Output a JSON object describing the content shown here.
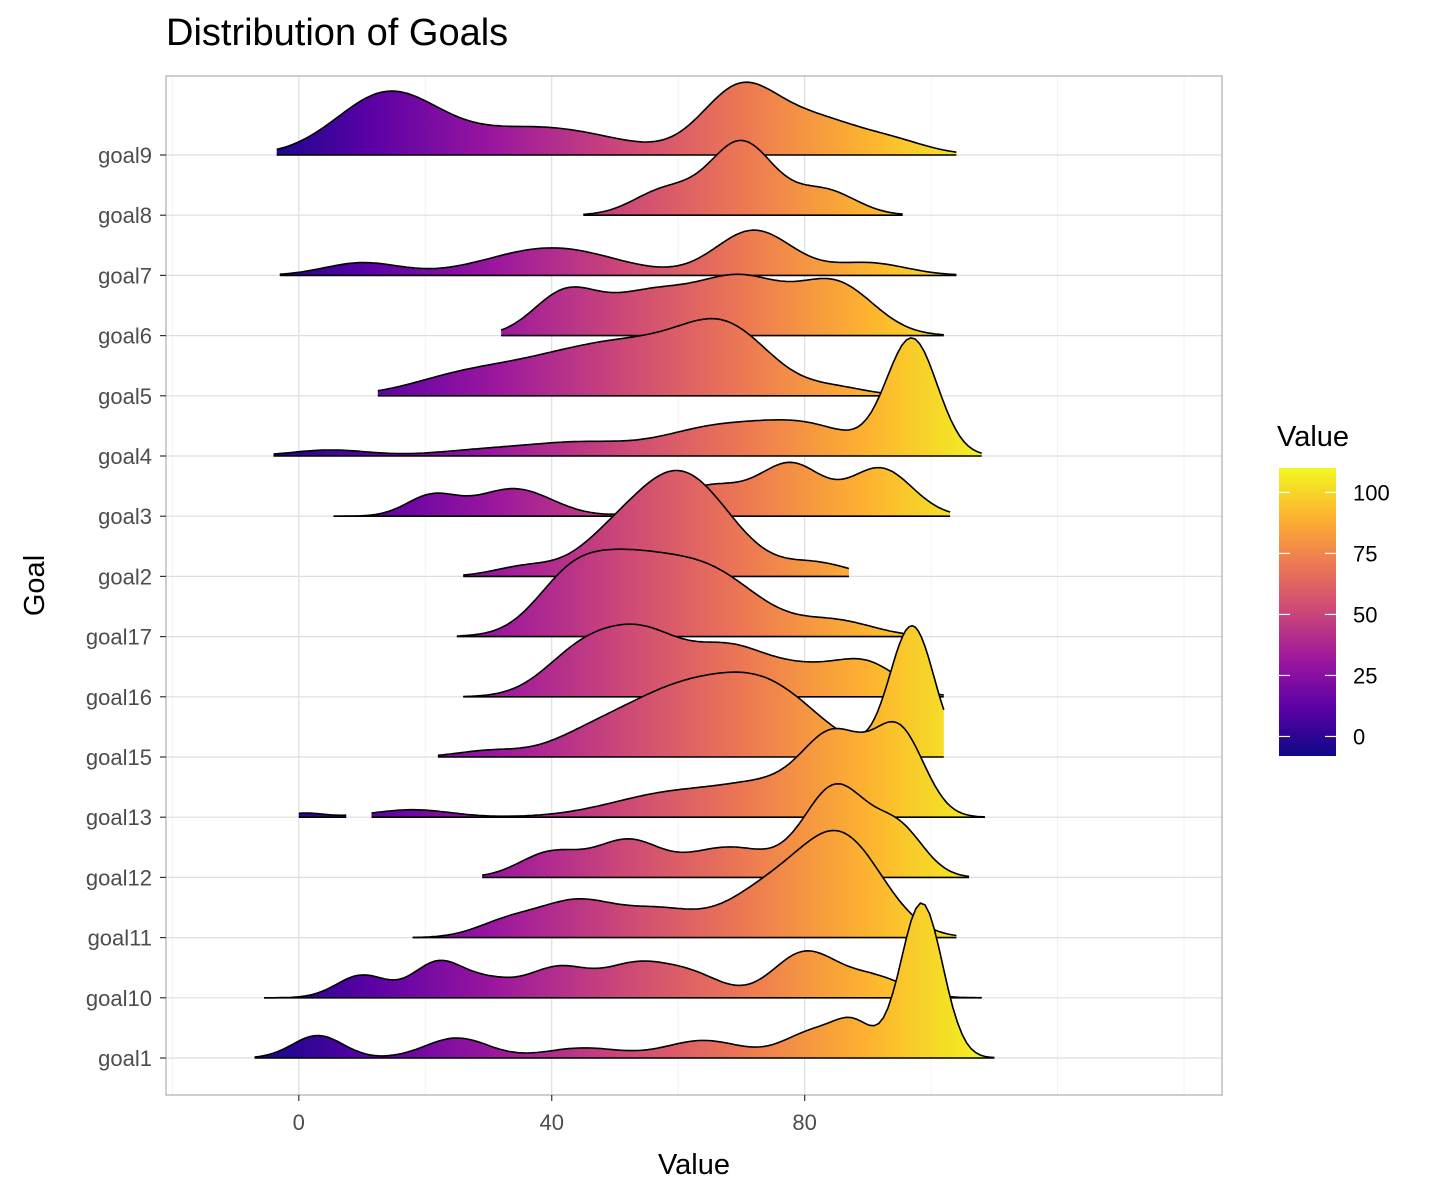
{
  "chart_data": {
    "type": "ridgeline",
    "title": "Distribution of Goals",
    "xlabel": "Value",
    "ylabel": "Goal",
    "xlim": [
      -21,
      146
    ],
    "x_ticks": [
      0,
      40,
      80
    ],
    "grid": true,
    "legend": {
      "title": "Value",
      "position": "right",
      "range": [
        -8,
        110
      ],
      "ticks": [
        0,
        25,
        50,
        75,
        100
      ],
      "colors": [
        "#0d0887",
        "#5c01a6",
        "#9c179e",
        "#cc4778",
        "#ed7953",
        "#fdb42f",
        "#f0f921"
      ]
    },
    "categories": [
      "goal1",
      "goal10",
      "goal11",
      "goal12",
      "goal13",
      "goal15",
      "goal16",
      "goal17",
      "goal2",
      "goal3",
      "goal4",
      "goal5",
      "goal6",
      "goal7",
      "goal8",
      "goal9"
    ],
    "series": [
      {
        "category": "goal1",
        "range": [
          -7,
          110
        ],
        "peaks": [
          [
            3,
            0.45,
            4
          ],
          [
            25,
            0.4,
            5
          ],
          [
            45,
            0.2,
            6
          ],
          [
            64,
            0.35,
            6
          ],
          [
            82,
            0.55,
            5
          ],
          [
            88,
            0.5,
            3
          ],
          [
            98.5,
            3.1,
            3.3
          ]
        ]
      },
      {
        "category": "goal10",
        "range": [
          -5.5,
          108
        ],
        "peaks": [
          [
            10,
            0.45,
            4
          ],
          [
            22,
            0.7,
            4
          ],
          [
            30,
            0.3,
            4
          ],
          [
            41,
            0.6,
            5
          ],
          [
            53,
            0.6,
            5
          ],
          [
            62,
            0.45,
            5
          ],
          [
            80,
            0.9,
            5
          ],
          [
            91,
            0.4,
            5
          ]
        ]
      },
      {
        "category": "goal11",
        "range": [
          18,
          104
        ],
        "peaks": [
          [
            33,
            0.3,
            5
          ],
          [
            44,
            0.7,
            6
          ],
          [
            57,
            0.5,
            6
          ],
          [
            74,
            0.9,
            7
          ],
          [
            86,
            1.9,
            6.5
          ]
        ]
      },
      {
        "category": "goal12",
        "range": [
          29,
          106
        ],
        "peaks": [
          [
            40,
            0.5,
            5
          ],
          [
            52,
            0.7,
            5
          ],
          [
            68,
            0.6,
            7
          ],
          [
            85,
            1.8,
            5
          ],
          [
            95,
            0.9,
            4
          ]
        ]
      },
      {
        "category": "goal13",
        "range": [
          0,
          108.5
        ],
        "gap": [
          7.5,
          11.5
        ],
        "peaks": [
          [
            1,
            0.08,
            3
          ],
          [
            18,
            0.15,
            6
          ],
          [
            60,
            0.5,
            10
          ],
          [
            75,
            0.5,
            7
          ],
          [
            85,
            1.5,
            5
          ],
          [
            95,
            1.65,
            4
          ]
        ]
      },
      {
        "category": "goal15",
        "range": [
          22,
          102
        ],
        "peaks": [
          [
            30,
            0.12,
            5
          ],
          [
            45,
            0.2,
            6
          ],
          [
            60,
            1.3,
            10
          ],
          [
            75,
            1.1,
            8
          ],
          [
            97,
            2.6,
            3.5
          ]
        ]
      },
      {
        "category": "goal16",
        "range": [
          26,
          102
        ],
        "peaks": [
          [
            45,
            0.9,
            6
          ],
          [
            55,
            1.1,
            6
          ],
          [
            68,
            0.9,
            6
          ],
          [
            80,
            0.5,
            6
          ],
          [
            90,
            0.6,
            5
          ]
        ]
      },
      {
        "category": "goal17",
        "range": [
          25,
          96
        ],
        "peaks": [
          [
            42,
            0.5,
            5
          ],
          [
            50,
            1.4,
            8
          ],
          [
            65,
            1.2,
            8
          ],
          [
            85,
            0.3,
            6
          ]
        ]
      },
      {
        "category": "goal2",
        "range": [
          26,
          87
        ],
        "peaks": [
          [
            36,
            0.2,
            5
          ],
          [
            48,
            0.3,
            5
          ],
          [
            60,
            2.1,
            8
          ],
          [
            82,
            0.25,
            5
          ]
        ]
      },
      {
        "category": "goal3",
        "range": [
          5.5,
          103
        ],
        "peaks": [
          [
            21,
            0.4,
            4
          ],
          [
            34,
            0.55,
            6
          ],
          [
            65,
            0.6,
            6
          ],
          [
            78,
            1.0,
            5
          ],
          [
            92,
            0.95,
            5
          ]
        ]
      },
      {
        "category": "goal4",
        "range": [
          -4,
          108
        ],
        "peaks": [
          [
            5,
            0.12,
            6
          ],
          [
            30,
            0.12,
            8
          ],
          [
            45,
            0.25,
            8
          ],
          [
            65,
            0.5,
            8
          ],
          [
            80,
            0.6,
            8
          ],
          [
            97,
            2.3,
            4
          ]
        ]
      },
      {
        "category": "goal5",
        "range": [
          12.5,
          100
        ],
        "peaks": [
          [
            25,
            0.3,
            8
          ],
          [
            40,
            0.55,
            10
          ],
          [
            55,
            0.85,
            10
          ],
          [
            68,
            1.1,
            7
          ],
          [
            85,
            0.15,
            5
          ]
        ]
      },
      {
        "category": "goal6",
        "range": [
          32,
          102
        ],
        "peaks": [
          [
            42,
            0.8,
            5
          ],
          [
            55,
            0.8,
            7
          ],
          [
            70,
            1.1,
            7
          ],
          [
            85,
            1.0,
            6
          ]
        ]
      },
      {
        "category": "goal7",
        "range": [
          -3,
          104
        ],
        "peaks": [
          [
            10,
            0.25,
            6
          ],
          [
            40,
            0.55,
            10
          ],
          [
            72,
            0.9,
            6
          ],
          [
            90,
            0.25,
            6
          ]
        ]
      },
      {
        "category": "goal8",
        "range": [
          45,
          95.5
        ],
        "peaks": [
          [
            58,
            0.5,
            5
          ],
          [
            70,
            1.45,
            5
          ],
          [
            83,
            0.5,
            5
          ]
        ]
      },
      {
        "category": "goal9",
        "range": [
          -3.5,
          104
        ],
        "peaks": [
          [
            14,
            1.2,
            8
          ],
          [
            38,
            0.55,
            12
          ],
          [
            70,
            1.35,
            6
          ],
          [
            82,
            0.6,
            6
          ],
          [
            93,
            0.3,
            6
          ]
        ]
      }
    ]
  }
}
